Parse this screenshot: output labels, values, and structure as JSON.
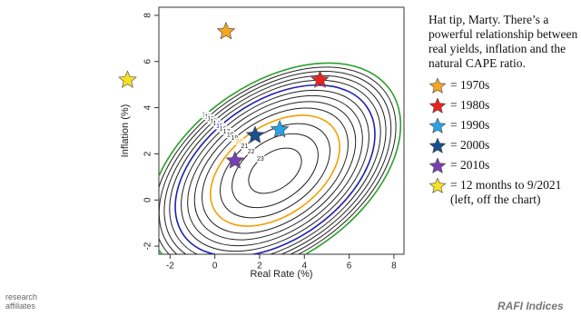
{
  "chart_data": {
    "type": "contour",
    "xlabel": "Real Rate (%)",
    "ylabel": "Inflation (%)",
    "xlim": [
      -2.5,
      8.45
    ],
    "ylim": [
      -2.35,
      8.35
    ],
    "xticks": [
      -2,
      0,
      2,
      4,
      6,
      8
    ],
    "yticks": [
      -2,
      0,
      2,
      4,
      6,
      8
    ],
    "contour_levels": [
      10,
      11,
      12,
      13,
      14,
      15,
      16,
      17,
      18,
      19,
      20,
      21,
      22,
      23
    ],
    "contour_colors": {
      "10": "#2ca02c",
      "15": "#1f1fb4",
      "20": "#f0a000"
    },
    "series": [
      {
        "name": "= 1970s",
        "color": "#f5a623",
        "x": [
          0.5
        ],
        "values": [
          7.3
        ]
      },
      {
        "name": "= 1980s",
        "color": "#e8231f",
        "x": [
          4.7
        ],
        "values": [
          5.2
        ]
      },
      {
        "name": "= 1990s",
        "color": "#2aa3e6",
        "x": [
          2.9
        ],
        "values": [
          3.05
        ]
      },
      {
        "name": "= 2000s",
        "color": "#1a4f8c",
        "x": [
          1.8
        ],
        "values": [
          2.8
        ]
      },
      {
        "name": "= 2010s",
        "color": "#7a3fb0",
        "x": [
          0.9
        ],
        "values": [
          1.7
        ]
      },
      {
        "name": "= 12 months to 9/2021 (left, off the chart)",
        "color": "#f7e025",
        "x": [
          -3.9
        ],
        "values": [
          5.2
        ]
      }
    ],
    "note": "Hat tip, Marty.  There’s a powerful relationship between real yields, inflation and the natural CAPE ratio."
  },
  "footer": {
    "left": "research affiliates",
    "right": "RAFI Indices"
  }
}
